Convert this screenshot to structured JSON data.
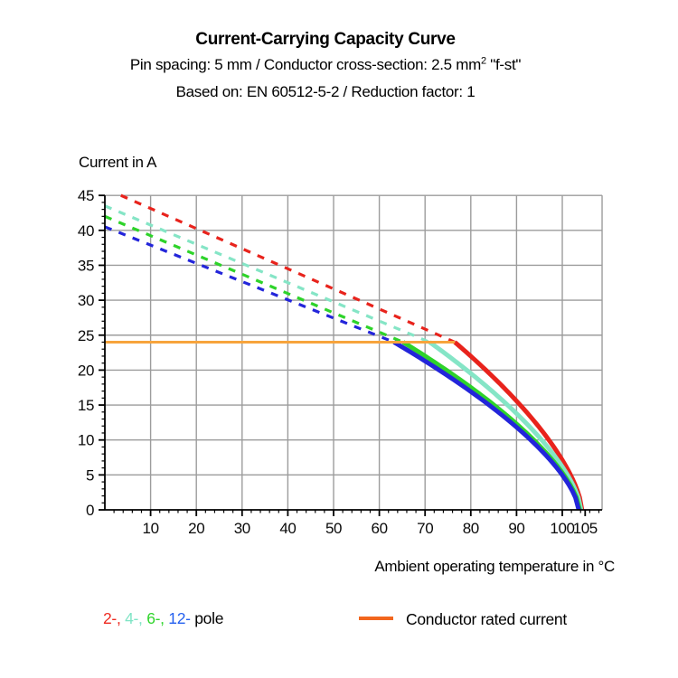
{
  "header": {
    "title": "Current-Carrying Capacity Curve",
    "subtitle_pre": "Pin spacing: 5 mm / Conductor cross-section: 2.5 mm",
    "subtitle_sup": "2",
    "subtitle_post": " \"f-st\"",
    "basis": "Based on: EN 60512-5-2 / Reduction factor: 1"
  },
  "legend": {
    "poles": [
      {
        "label": "2-,",
        "color": "#ee2a20"
      },
      {
        "label": "4-,",
        "color": "#7fe4c5"
      },
      {
        "label": "6-,",
        "color": "#30d52c"
      },
      {
        "label": "12-",
        "color": "#2460ef"
      }
    ],
    "suffix": "pole",
    "rated": {
      "label": "Conductor rated current",
      "swatch_color": "#f2661e"
    }
  },
  "chart_data": {
    "type": "line",
    "title": "Current-Carrying Capacity Curve",
    "xlabel": "Ambient operating temperature in °C",
    "ylabel": "Current in A",
    "xlim": [
      0,
      108.7
    ],
    "ylim": [
      0,
      45
    ],
    "xticks": [
      10,
      20,
      30,
      40,
      50,
      60,
      70,
      80,
      90,
      100,
      105
    ],
    "yticks": [
      0,
      5,
      10,
      15,
      20,
      25,
      30,
      35,
      40,
      45
    ],
    "x_minor_step": 2,
    "y_minor_step": 1,
    "grid": true,
    "grid_color": "#9c9c9c",
    "axis_color": "#000000",
    "rated_current": {
      "value": 24,
      "x_start": 0,
      "x_end": 76.5,
      "line_color": "#f7a43c"
    },
    "series": [
      {
        "name": "2-pole",
        "color": "#e8231c",
        "dashed": {
          "x": [
            3.5,
            76.5
          ],
          "y": [
            45,
            24
          ]
        },
        "solid": {
          "x_start": 76.5,
          "x_end": 104.3,
          "y_start": 24,
          "exponent": 0.65
        },
        "solid_points": [
          [
            76.5,
            24
          ],
          [
            80,
            22.0
          ],
          [
            85,
            18.9
          ],
          [
            90,
            15.6
          ],
          [
            95,
            11.8
          ],
          [
            100,
            7.1
          ],
          [
            102,
            4.7
          ],
          [
            104.3,
            0
          ]
        ]
      },
      {
        "name": "4-pole",
        "color": "#85e5c6",
        "dashed": {
          "x": [
            0,
            71.0
          ],
          "y": [
            43.5,
            24
          ]
        },
        "solid": {
          "x_start": 71.0,
          "x_end": 104.1,
          "y_start": 24,
          "exponent": 0.65
        },
        "solid_points": [
          [
            71,
            24
          ],
          [
            75,
            22.1
          ],
          [
            80,
            19.5
          ],
          [
            85,
            16.8
          ],
          [
            90,
            13.8
          ],
          [
            95,
            10.4
          ],
          [
            100,
            6.2
          ],
          [
            102,
            4.0
          ],
          [
            104.1,
            0
          ]
        ]
      },
      {
        "name": "6-pole",
        "color": "#2ed32a",
        "dashed": {
          "x": [
            0,
            65.2
          ],
          "y": [
            42,
            24
          ]
        },
        "solid": {
          "x_start": 65.2,
          "x_end": 103.8,
          "y_start": 24,
          "exponent": 0.65
        },
        "solid_points": [
          [
            65.2,
            24
          ],
          [
            70,
            22.0
          ],
          [
            75,
            19.8
          ],
          [
            80,
            17.5
          ],
          [
            85,
            15.0
          ],
          [
            90,
            12.3
          ],
          [
            95,
            9.2
          ],
          [
            100,
            5.3
          ],
          [
            102,
            3.3
          ],
          [
            103.8,
            0
          ]
        ]
      },
      {
        "name": "12-pole",
        "color": "#2325da",
        "dashed": {
          "x": [
            0,
            63.2
          ],
          "y": [
            40.5,
            24
          ]
        },
        "solid": {
          "x_start": 63.2,
          "x_end": 103.6,
          "y_start": 24,
          "exponent": 0.65
        },
        "solid_points": [
          [
            63.2,
            24
          ],
          [
            70,
            21.3
          ],
          [
            75,
            19.2
          ],
          [
            80,
            16.9
          ],
          [
            85,
            14.5
          ],
          [
            90,
            11.8
          ],
          [
            95,
            8.8
          ],
          [
            100,
            5.0
          ],
          [
            102,
            2.9
          ],
          [
            103.6,
            0
          ]
        ]
      }
    ]
  }
}
